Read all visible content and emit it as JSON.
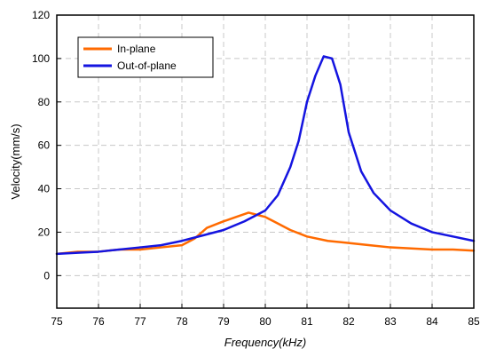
{
  "chart_data": {
    "type": "line",
    "xlabel": "Frequency(kHz)",
    "ylabel": "Velocity(mm/s)",
    "xlim": [
      75,
      85
    ],
    "ylim": [
      -15,
      120
    ],
    "xticks": [
      75,
      76,
      77,
      78,
      79,
      80,
      81,
      82,
      83,
      84,
      85
    ],
    "yticks": [
      0,
      20,
      40,
      60,
      80,
      100,
      120
    ],
    "grid": true,
    "legend_position": "top-left",
    "series": [
      {
        "name": "In-plane",
        "color": "#ff6a00",
        "x": [
          75,
          75.5,
          76,
          76.5,
          77,
          77.5,
          78,
          78.3,
          78.6,
          79,
          79.3,
          79.6,
          79.8,
          80,
          80.3,
          80.6,
          81,
          81.5,
          82,
          82.5,
          83,
          83.5,
          84,
          84.5,
          85
        ],
        "values": [
          10,
          11,
          11,
          12,
          12,
          13,
          14,
          17,
          22,
          25,
          27,
          29,
          28,
          27,
          24,
          21,
          18,
          16,
          15,
          14,
          13,
          12.5,
          12,
          12,
          11.5
        ]
      },
      {
        "name": "Out-of-plane",
        "color": "#1414e0",
        "x": [
          75,
          75.5,
          76,
          76.5,
          77,
          77.5,
          78,
          78.5,
          79,
          79.5,
          80,
          80.3,
          80.6,
          80.8,
          81,
          81.2,
          81.4,
          81.6,
          81.8,
          82,
          82.3,
          82.6,
          83,
          83.5,
          84,
          84.5,
          85
        ],
        "values": [
          10,
          10.5,
          11,
          12,
          13,
          14,
          16,
          18.5,
          21,
          25,
          30,
          37,
          50,
          62,
          80,
          92,
          101,
          100,
          88,
          66,
          48,
          38,
          30,
          24,
          20,
          18,
          16
        ]
      }
    ]
  }
}
